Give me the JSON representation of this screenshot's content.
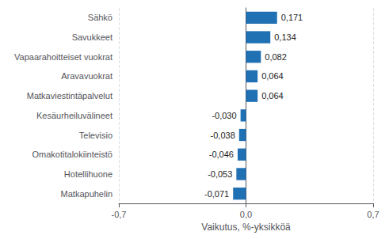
{
  "chart_data": {
    "type": "bar",
    "orientation": "horizontal",
    "categories": [
      "Matkapuhelin",
      "Hotellihuone",
      "Omakotitalokiinteistö",
      "Televisio",
      "Kesäurheiluvälineet",
      "Matkaviestintäpalvelut",
      "Aravavuokrat",
      "Vapaarahoitteiset vuokrat",
      "Savukkeet",
      "Sähkö"
    ],
    "values": [
      -0.071,
      -0.053,
      -0.046,
      -0.038,
      -0.03,
      0.064,
      0.064,
      0.082,
      0.134,
      0.171
    ],
    "value_labels": [
      "-0,071",
      "-0,053",
      "-0,046",
      "-0,038",
      "-0,030",
      "0,064",
      "0,064",
      "0,082",
      "0,134",
      "0,171"
    ],
    "data_labels": true,
    "color": "#2070b4",
    "xlabel": "Vaikutus, %-yksikköä",
    "xlim": [
      -0.7,
      0.7
    ],
    "xticks": [
      {
        "value": -0.7,
        "label": "-0,7"
      },
      {
        "value": 0.0,
        "label": "0,0"
      },
      {
        "value": 0.7,
        "label": "0,7"
      }
    ],
    "grid": true
  }
}
